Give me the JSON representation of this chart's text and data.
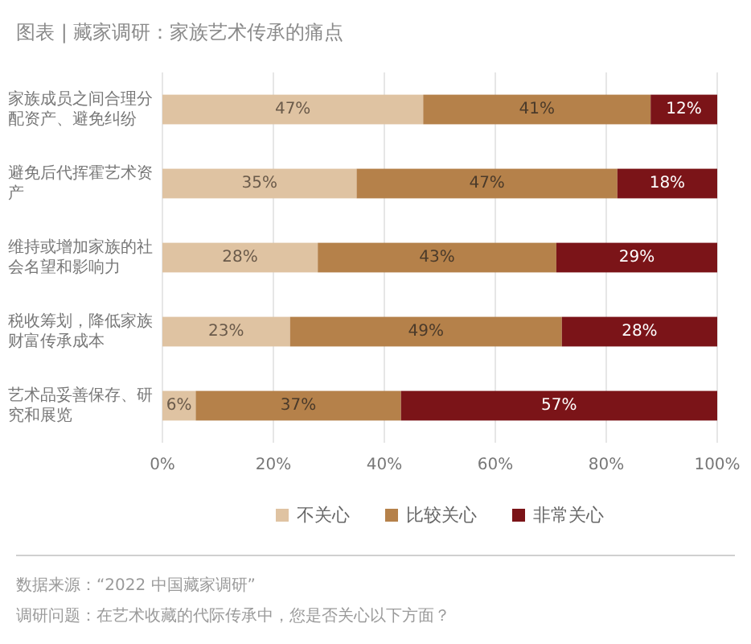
{
  "chart_data": {
    "type": "bar",
    "orientation": "horizontal",
    "stacked": true,
    "title": "图表 | 藏家调研：家族艺术传承的痛点",
    "categories": [
      "家族成员之间合理分配资产、避免纠纷",
      "避免后代挥霍艺术资产",
      "维持或增加家族的社会名望和影响力",
      "税收筹划，降低家族财富传承成本",
      "艺术品妥善保存、研究和展览"
    ],
    "series": [
      {
        "name": "不关心",
        "color": "#dfc3a2",
        "values": [
          47,
          35,
          28,
          23,
          6
        ],
        "value_labels": [
          "47%",
          "35%",
          "28%",
          "23%",
          "6%"
        ]
      },
      {
        "name": "比较关心",
        "color": "#b5814a",
        "values": [
          41,
          47,
          43,
          49,
          37
        ],
        "value_labels": [
          "41%",
          "47%",
          "43%",
          "49%",
          "37%"
        ]
      },
      {
        "name": "非常关心",
        "color": "#7b1418",
        "values": [
          12,
          18,
          29,
          28,
          57
        ],
        "value_labels": [
          "12%",
          "18%",
          "29%",
          "28%",
          "57%"
        ]
      }
    ],
    "xlim": [
      0,
      100
    ],
    "xticks": [
      {
        "value": 0,
        "label": "0%"
      },
      {
        "value": 20,
        "label": "20%"
      },
      {
        "value": 40,
        "label": "40%"
      },
      {
        "value": 60,
        "label": "60%"
      },
      {
        "value": 80,
        "label": "80%"
      },
      {
        "value": 100,
        "label": "100%"
      }
    ],
    "grid": "x",
    "legend": "bottom",
    "annotations": [
      "数据来源：“2022 中国藏家调研”",
      "调研问题：在艺术收藏的代际传承中，您是否关心以下方面？"
    ]
  }
}
